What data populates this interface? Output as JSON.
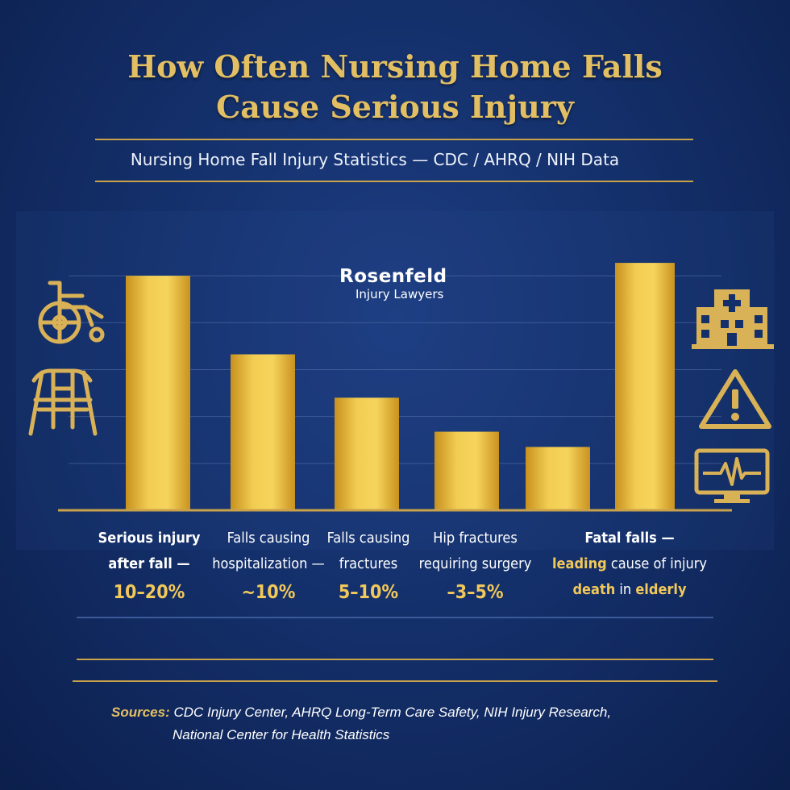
{
  "header": {
    "title_line1": "How Often Nursing Home Falls",
    "title_line2": "Cause Serious Injury",
    "subtitle": "Nursing Home Fall Injury Statistics — CDC / AHRQ / NIH Data"
  },
  "logo": {
    "name": "Rosenfeld",
    "tagline": "Injury Lawyers"
  },
  "labels": [
    {
      "line1": "Serious injury",
      "line2": "after fall —",
      "value": "10–20%"
    },
    {
      "line1": "Falls causing",
      "line2": "hospitalization —",
      "value": "~10%"
    },
    {
      "line1": "Falls causing",
      "line2": "fractures",
      "value": "5–10%"
    },
    {
      "line1": "Hip fractures",
      "line2": "requiring surgery",
      "value": "–3–5%"
    },
    {
      "line1": "Fatal falls —",
      "line2_a": "leading",
      "line2_b": " cause of injury",
      "line3_a": "death",
      "line3_b": " in ",
      "line3_c": "elderly"
    }
  ],
  "sources": {
    "lead": "Sources:",
    "line1": " CDC Injury Center, AHRQ Long-Term Care Safety, NIH Injury Research,",
    "line2": "National Center for Health Statistics"
  },
  "icons": {
    "left": [
      "wheelchair-icon",
      "walker-icon"
    ],
    "right": [
      "hospital-icon",
      "warning-icon",
      "heart-monitor-icon"
    ]
  },
  "colors": {
    "accent_gold": "#e3bf63",
    "bar_gold": "#e8b93a",
    "background": "#14306b"
  },
  "chart_data": {
    "type": "bar",
    "categories": [
      "Serious injury after fall",
      "Falls causing hospitalization",
      "Falls causing fractures",
      "Hip fractures requiring surgery",
      "",
      "Fatal falls"
    ],
    "values": [
      20,
      13.3,
      9.6,
      6.7,
      5.4,
      21.1
    ],
    "ylim": [
      0,
      22
    ],
    "grid": true,
    "title": "How Often Nursing Home Falls Cause Serious Injury"
  }
}
